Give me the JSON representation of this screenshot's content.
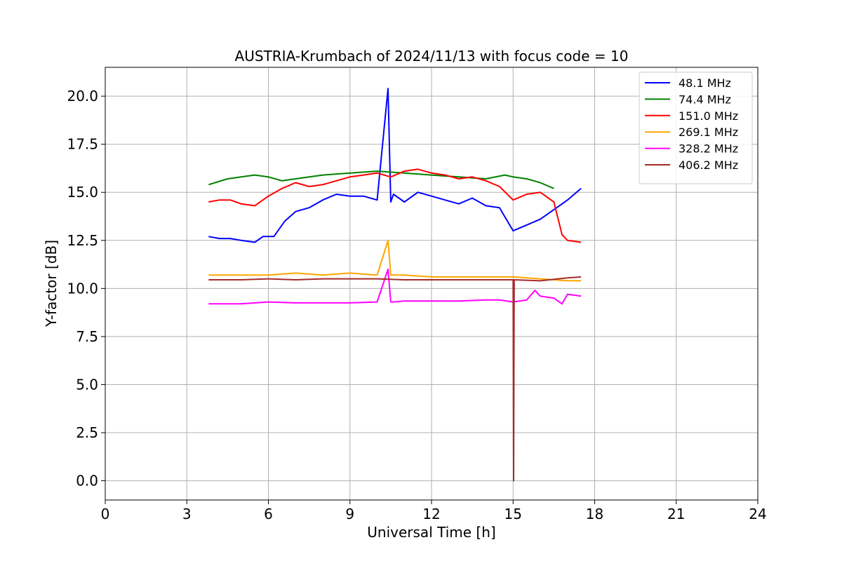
{
  "chart_data": {
    "type": "line",
    "title": "AUSTRIA-Krumbach of 2024/11/13 with focus code = 10",
    "xlabel": "Universal Time [h]",
    "ylabel": "Y-factor [dB]",
    "xlim": [
      0,
      24
    ],
    "ylim": [
      -1,
      21.5
    ],
    "xticks": [
      0,
      3,
      6,
      9,
      12,
      15,
      18,
      21,
      24
    ],
    "xtick_labels": [
      "0",
      "3",
      "6",
      "9",
      "12",
      "15",
      "18",
      "21",
      "24"
    ],
    "yticks": [
      0,
      2.5,
      5,
      7.5,
      10,
      12.5,
      15,
      17.5,
      20
    ],
    "ytick_labels": [
      "0.0",
      "2.5",
      "5.0",
      "7.5",
      "10.0",
      "12.5",
      "15.0",
      "17.5",
      "20.0"
    ],
    "grid": true,
    "legend_position": "top-right",
    "series": [
      {
        "name": " 48.1 MHz",
        "color": "#0000ff",
        "x": [
          3.8,
          4.2,
          4.6,
          5.0,
          5.5,
          5.8,
          6.2,
          6.6,
          7.0,
          7.5,
          8.0,
          8.5,
          9.0,
          9.5,
          10.0,
          10.4,
          10.5,
          10.6,
          11.0,
          11.5,
          12.0,
          12.5,
          13.0,
          13.5,
          14.0,
          14.5,
          15.0,
          15.5,
          16.0,
          16.5,
          17.0,
          17.5
        ],
        "y": [
          12.7,
          12.6,
          12.6,
          12.5,
          12.4,
          12.7,
          12.7,
          13.5,
          14.0,
          14.2,
          14.6,
          14.9,
          14.8,
          14.8,
          14.6,
          20.4,
          14.5,
          14.9,
          14.5,
          15.0,
          14.8,
          14.6,
          14.4,
          14.7,
          14.3,
          14.2,
          13.0,
          13.3,
          13.6,
          14.1,
          14.6,
          15.2
        ]
      },
      {
        "name": " 74.4 MHz",
        "color": "#008000",
        "x": [
          3.8,
          4.5,
          5.0,
          5.5,
          6.0,
          6.5,
          7.0,
          8.0,
          9.0,
          10.0,
          11.0,
          12.0,
          13.0,
          14.0,
          14.7,
          15.0,
          15.5,
          16.0,
          16.5
        ],
        "y": [
          15.4,
          15.7,
          15.8,
          15.9,
          15.8,
          15.6,
          15.7,
          15.9,
          16.0,
          16.1,
          16.0,
          15.9,
          15.8,
          15.7,
          15.9,
          15.8,
          15.7,
          15.5,
          15.2
        ]
      },
      {
        "name": " 151.0 MHz",
        "color": "#ff0000",
        "x": [
          3.8,
          4.2,
          4.6,
          5.0,
          5.5,
          6.0,
          6.5,
          7.0,
          7.5,
          8.0,
          8.5,
          9.0,
          9.5,
          10.0,
          10.5,
          11.0,
          11.5,
          12.0,
          12.5,
          13.0,
          13.5,
          14.0,
          14.5,
          15.0,
          15.5,
          16.0,
          16.5,
          16.8,
          17.0,
          17.5
        ],
        "y": [
          14.5,
          14.6,
          14.6,
          14.4,
          14.3,
          14.8,
          15.2,
          15.5,
          15.3,
          15.4,
          15.6,
          15.8,
          15.9,
          16.0,
          15.8,
          16.1,
          16.2,
          16.0,
          15.9,
          15.7,
          15.8,
          15.6,
          15.3,
          14.6,
          14.9,
          15.0,
          14.5,
          12.8,
          12.5,
          12.4
        ]
      },
      {
        "name": " 269.1 MHz",
        "color": "#ffa500",
        "x": [
          3.8,
          5.0,
          6.0,
          7.0,
          8.0,
          9.0,
          10.0,
          10.4,
          10.5,
          10.6,
          11.0,
          12.0,
          13.0,
          14.0,
          15.0,
          16.0,
          17.0,
          17.5
        ],
        "y": [
          10.7,
          10.7,
          10.7,
          10.8,
          10.7,
          10.8,
          10.7,
          12.5,
          10.7,
          10.7,
          10.7,
          10.6,
          10.6,
          10.6,
          10.6,
          10.5,
          10.4,
          10.4
        ]
      },
      {
        "name": " 328.2 MHz",
        "color": "#ff00ff",
        "x": [
          3.8,
          5.0,
          6.0,
          7.0,
          8.0,
          9.0,
          10.0,
          10.4,
          10.5,
          10.6,
          11.0,
          12.0,
          13.0,
          14.0,
          14.5,
          15.0,
          15.5,
          15.8,
          16.0,
          16.5,
          16.8,
          17.0,
          17.5
        ],
        "y": [
          9.2,
          9.2,
          9.3,
          9.25,
          9.25,
          9.25,
          9.3,
          11.0,
          9.3,
          9.3,
          9.35,
          9.35,
          9.35,
          9.4,
          9.4,
          9.3,
          9.4,
          9.9,
          9.6,
          9.5,
          9.2,
          9.7,
          9.6
        ]
      },
      {
        "name": " 406.2 MHz",
        "color": "#a52a2a",
        "x": [
          3.8,
          5.0,
          6.0,
          7.0,
          8.0,
          9.0,
          10.0,
          11.0,
          12.0,
          13.0,
          14.0,
          15.0,
          15.02,
          15.04,
          16.0,
          17.0,
          17.5
        ],
        "y": [
          10.45,
          10.45,
          10.5,
          10.45,
          10.5,
          10.5,
          10.5,
          10.45,
          10.45,
          10.45,
          10.45,
          10.45,
          0.0,
          10.45,
          10.4,
          10.55,
          10.6
        ]
      }
    ]
  }
}
